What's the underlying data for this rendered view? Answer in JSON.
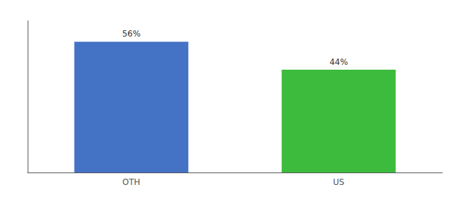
{
  "chart_data": {
    "type": "bar",
    "categories": [
      "OTH",
      "US"
    ],
    "values": [
      56,
      44
    ],
    "value_labels": [
      "56%",
      "44%"
    ],
    "colors": [
      "#4472c4",
      "#3dbb3d"
    ],
    "ylim": [
      0,
      65
    ],
    "grid": false,
    "data_labels": true,
    "tick_labels": "x"
  }
}
